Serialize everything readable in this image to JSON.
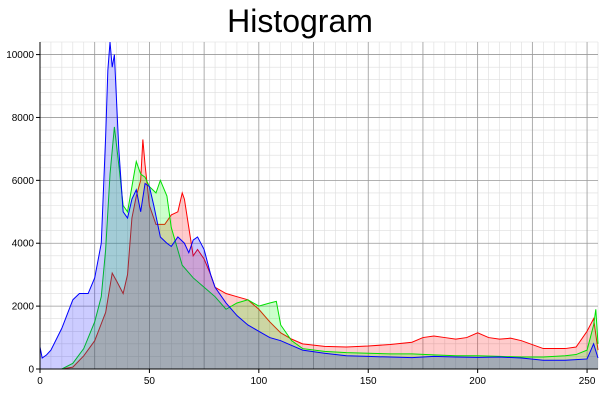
{
  "chart_data": {
    "type": "area",
    "title": "Histogram",
    "xlabel": "",
    "ylabel": "",
    "xlim": [
      0,
      255
    ],
    "ylim": [
      0,
      10400
    ],
    "grid": true,
    "legend": "none",
    "x_ticks": [
      0,
      50,
      100,
      150,
      200,
      250
    ],
    "y_ticks": [
      0,
      2000,
      4000,
      6000,
      8000,
      10000
    ],
    "series": [
      {
        "color": "#ff0000",
        "fill": "rgba(255,0,0,0.2)",
        "points": [
          [
            0,
            0
          ],
          [
            10,
            0
          ],
          [
            15,
            60
          ],
          [
            20,
            420
          ],
          [
            25,
            900
          ],
          [
            30,
            1800
          ],
          [
            33,
            3050
          ],
          [
            35,
            2800
          ],
          [
            38,
            2400
          ],
          [
            40,
            3000
          ],
          [
            42,
            4800
          ],
          [
            44,
            5500
          ],
          [
            46,
            6000
          ],
          [
            47,
            7300
          ],
          [
            48,
            6500
          ],
          [
            50,
            5200
          ],
          [
            53,
            4600
          ],
          [
            57,
            4600
          ],
          [
            60,
            4900
          ],
          [
            63,
            5000
          ],
          [
            65,
            5600
          ],
          [
            66,
            5400
          ],
          [
            68,
            4500
          ],
          [
            70,
            3600
          ],
          [
            72,
            3800
          ],
          [
            75,
            3500
          ],
          [
            78,
            3000
          ],
          [
            80,
            2600
          ],
          [
            85,
            2400
          ],
          [
            90,
            2300
          ],
          [
            95,
            2200
          ],
          [
            100,
            1900
          ],
          [
            105,
            1500
          ],
          [
            110,
            1150
          ],
          [
            115,
            950
          ],
          [
            120,
            800
          ],
          [
            130,
            720
          ],
          [
            140,
            700
          ],
          [
            150,
            730
          ],
          [
            160,
            780
          ],
          [
            170,
            850
          ],
          [
            175,
            1000
          ],
          [
            180,
            1050
          ],
          [
            185,
            1000
          ],
          [
            190,
            950
          ],
          [
            195,
            1000
          ],
          [
            200,
            1150
          ],
          [
            205,
            1000
          ],
          [
            210,
            950
          ],
          [
            215,
            980
          ],
          [
            220,
            900
          ],
          [
            230,
            650
          ],
          [
            240,
            650
          ],
          [
            245,
            700
          ],
          [
            250,
            1200
          ],
          [
            253,
            1600
          ],
          [
            255,
            600
          ]
        ]
      },
      {
        "color": "#00e000",
        "fill": "rgba(0,255,0,0.2)",
        "points": [
          [
            0,
            0
          ],
          [
            10,
            0
          ],
          [
            15,
            180
          ],
          [
            20,
            650
          ],
          [
            25,
            1500
          ],
          [
            28,
            2300
          ],
          [
            30,
            3800
          ],
          [
            32,
            6200
          ],
          [
            34,
            7700
          ],
          [
            36,
            6500
          ],
          [
            38,
            5200
          ],
          [
            40,
            5000
          ],
          [
            42,
            5800
          ],
          [
            44,
            6600
          ],
          [
            46,
            6200
          ],
          [
            48,
            6100
          ],
          [
            50,
            5800
          ],
          [
            53,
            5600
          ],
          [
            55,
            6000
          ],
          [
            58,
            5500
          ],
          [
            60,
            4500
          ],
          [
            65,
            3300
          ],
          [
            70,
            2900
          ],
          [
            75,
            2600
          ],
          [
            80,
            2300
          ],
          [
            85,
            1900
          ],
          [
            90,
            2100
          ],
          [
            95,
            2200
          ],
          [
            100,
            2000
          ],
          [
            105,
            2100
          ],
          [
            108,
            2150
          ],
          [
            110,
            1400
          ],
          [
            115,
            900
          ],
          [
            120,
            650
          ],
          [
            130,
            560
          ],
          [
            140,
            520
          ],
          [
            150,
            500
          ],
          [
            160,
            480
          ],
          [
            170,
            480
          ],
          [
            180,
            450
          ],
          [
            190,
            420
          ],
          [
            200,
            420
          ],
          [
            210,
            400
          ],
          [
            220,
            380
          ],
          [
            230,
            380
          ],
          [
            240,
            420
          ],
          [
            245,
            460
          ],
          [
            250,
            600
          ],
          [
            253,
            1400
          ],
          [
            254,
            1900
          ],
          [
            255,
            800
          ]
        ]
      },
      {
        "color": "#0000ff",
        "fill": "rgba(0,0,255,0.2)",
        "points": [
          [
            0,
            700
          ],
          [
            1,
            350
          ],
          [
            3,
            450
          ],
          [
            5,
            600
          ],
          [
            10,
            1300
          ],
          [
            15,
            2200
          ],
          [
            18,
            2400
          ],
          [
            22,
            2400
          ],
          [
            25,
            2900
          ],
          [
            28,
            4000
          ],
          [
            30,
            7400
          ],
          [
            31,
            9500
          ],
          [
            32,
            10400
          ],
          [
            33,
            9600
          ],
          [
            34,
            10000
          ],
          [
            35,
            8500
          ],
          [
            36,
            7000
          ],
          [
            38,
            5000
          ],
          [
            40,
            4800
          ],
          [
            42,
            5400
          ],
          [
            44,
            5700
          ],
          [
            46,
            5000
          ],
          [
            48,
            5900
          ],
          [
            50,
            5800
          ],
          [
            52,
            5200
          ],
          [
            55,
            4200
          ],
          [
            58,
            4000
          ],
          [
            60,
            3900
          ],
          [
            63,
            4200
          ],
          [
            66,
            4000
          ],
          [
            68,
            3700
          ],
          [
            70,
            4100
          ],
          [
            72,
            4200
          ],
          [
            75,
            3800
          ],
          [
            78,
            3000
          ],
          [
            80,
            2600
          ],
          [
            85,
            2100
          ],
          [
            90,
            1700
          ],
          [
            95,
            1400
          ],
          [
            100,
            1200
          ],
          [
            105,
            1000
          ],
          [
            110,
            900
          ],
          [
            115,
            750
          ],
          [
            120,
            600
          ],
          [
            130,
            500
          ],
          [
            140,
            420
          ],
          [
            150,
            400
          ],
          [
            160,
            380
          ],
          [
            170,
            360
          ],
          [
            180,
            400
          ],
          [
            190,
            380
          ],
          [
            200,
            370
          ],
          [
            210,
            380
          ],
          [
            220,
            350
          ],
          [
            230,
            280
          ],
          [
            240,
            280
          ],
          [
            245,
            300
          ],
          [
            250,
            320
          ],
          [
            253,
            800
          ],
          [
            255,
            350
          ]
        ]
      }
    ]
  }
}
